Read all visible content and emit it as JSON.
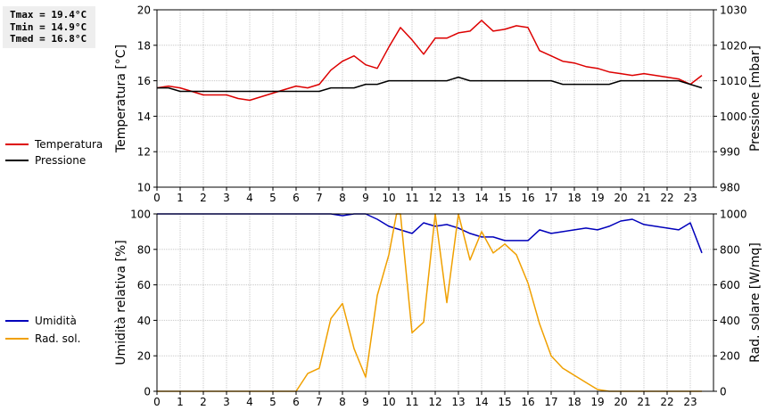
{
  "stats": [
    "Tmax = 19.4°C",
    "Tmin = 14.9°C",
    "Tmed = 16.8°C"
  ],
  "chart_data": [
    {
      "type": "line",
      "ylabel": "Temperatura [°C]",
      "y2label": "Pressione [mbar]",
      "ylim": [
        10,
        20
      ],
      "y2lim": [
        980,
        1030
      ],
      "xlim": [
        0,
        24
      ],
      "yticks": [
        10,
        12,
        14,
        16,
        18,
        20
      ],
      "y2ticks": [
        980,
        990,
        1000,
        1010,
        1020,
        1030
      ],
      "xticks": [
        0,
        1,
        2,
        3,
        4,
        5,
        6,
        7,
        8,
        9,
        10,
        11,
        12,
        13,
        14,
        15,
        16,
        17,
        18,
        19,
        20,
        21,
        22,
        23
      ],
      "grid": true,
      "legend_position": "left",
      "series": [
        {
          "name": "Temperatura",
          "axis": "left",
          "color": "#dd0000",
          "x": [
            0,
            0.5,
            1,
            1.5,
            2,
            2.5,
            3,
            3.5,
            4,
            4.5,
            5,
            5.5,
            6,
            6.5,
            7,
            7.5,
            8,
            8.5,
            9,
            9.5,
            10,
            10.5,
            11,
            11.5,
            12,
            12.5,
            13,
            13.5,
            14,
            14.5,
            15,
            15.5,
            16,
            16.5,
            17,
            17.5,
            18,
            18.5,
            19,
            19.5,
            20,
            20.5,
            21,
            21.5,
            22,
            22.5,
            23,
            23.5
          ],
          "values": [
            15.6,
            15.7,
            15.6,
            15.4,
            15.2,
            15.2,
            15.2,
            15.0,
            14.9,
            15.1,
            15.3,
            15.5,
            15.7,
            15.6,
            15.8,
            16.6,
            17.1,
            17.4,
            16.9,
            16.7,
            17.9,
            19.0,
            18.3,
            17.5,
            18.4,
            18.4,
            18.7,
            18.8,
            19.4,
            18.8,
            18.9,
            19.1,
            19.0,
            17.7,
            17.4,
            17.1,
            17.0,
            16.8,
            16.7,
            16.5,
            16.4,
            16.3,
            16.4,
            16.3,
            16.2,
            16.1,
            15.8,
            16.3
          ]
        },
        {
          "name": "Pressione",
          "axis": "right",
          "color": "#000000",
          "x": [
            0,
            0.5,
            1,
            1.5,
            2,
            2.5,
            3,
            3.5,
            4,
            4.5,
            5,
            5.5,
            6,
            6.5,
            7,
            7.5,
            8,
            8.5,
            9,
            9.5,
            10,
            10.5,
            11,
            11.5,
            12,
            12.5,
            13,
            13.5,
            14,
            14.5,
            15,
            15.5,
            16,
            16.5,
            17,
            17.5,
            18,
            18.5,
            19,
            19.5,
            20,
            20.5,
            21,
            21.5,
            22,
            22.5,
            23,
            23.5
          ],
          "values": [
            1008,
            1008,
            1007,
            1007,
            1007,
            1007,
            1007,
            1007,
            1007,
            1007,
            1007,
            1007,
            1007,
            1007,
            1007,
            1008,
            1008,
            1008,
            1009,
            1009,
            1010,
            1010,
            1010,
            1010,
            1010,
            1010,
            1011,
            1010,
            1010,
            1010,
            1010,
            1010,
            1010,
            1010,
            1010,
            1009,
            1009,
            1009,
            1009,
            1009,
            1010,
            1010,
            1010,
            1010,
            1010,
            1010,
            1009,
            1008
          ]
        }
      ]
    },
    {
      "type": "line",
      "ylabel": "Umidità relativa [%]",
      "y2label": "Rad. solare [W/mq]",
      "ylim": [
        0,
        100
      ],
      "y2lim": [
        0,
        1000
      ],
      "xlim": [
        0,
        24
      ],
      "yticks": [
        0,
        20,
        40,
        60,
        80,
        100
      ],
      "y2ticks": [
        0,
        200,
        400,
        600,
        800,
        1000
      ],
      "xticks": [
        0,
        1,
        2,
        3,
        4,
        5,
        6,
        7,
        8,
        9,
        10,
        11,
        12,
        13,
        14,
        15,
        16,
        17,
        18,
        19,
        20,
        21,
        22,
        23
      ],
      "grid": true,
      "legend_position": "left",
      "series": [
        {
          "name": "Umidità",
          "axis": "left",
          "color": "#0000bb",
          "x": [
            0,
            0.5,
            1,
            1.5,
            2,
            2.5,
            3,
            3.5,
            4,
            4.5,
            5,
            5.5,
            6,
            6.5,
            7,
            7.5,
            8,
            8.5,
            9,
            9.5,
            10,
            10.5,
            11,
            11.5,
            12,
            12.5,
            13,
            13.5,
            14,
            14.5,
            15,
            15.5,
            16,
            16.5,
            17,
            17.5,
            18,
            18.5,
            19,
            19.5,
            20,
            20.5,
            21,
            21.5,
            22,
            22.5,
            23,
            23.5
          ],
          "values": [
            100,
            100,
            100,
            100,
            100,
            100,
            100,
            100,
            100,
            100,
            100,
            100,
            100,
            100,
            100,
            100,
            99,
            100,
            100,
            97,
            93,
            91,
            89,
            95,
            93,
            94,
            92,
            89,
            87,
            87,
            85,
            85,
            85,
            91,
            89,
            90,
            91,
            92,
            91,
            93,
            96,
            97,
            94,
            93,
            92,
            91,
            95,
            78
          ]
        },
        {
          "name": "Rad. sol.",
          "axis": "right",
          "color": "#f0a000",
          "x": [
            0,
            0.5,
            1,
            1.5,
            2,
            2.5,
            3,
            3.5,
            4,
            4.5,
            5,
            5.5,
            6,
            6.5,
            7,
            7.5,
            8,
            8.5,
            9,
            9.5,
            10,
            10.33,
            10.5,
            11,
            11.5,
            12,
            12.5,
            13,
            13.5,
            14,
            14.5,
            15,
            15.5,
            16,
            16.5,
            17,
            17.5,
            18,
            18.5,
            19,
            19.5,
            20,
            20.5,
            21,
            21.5,
            22,
            22.5,
            23,
            23.5
          ],
          "values": [
            0,
            0,
            0,
            0,
            0,
            0,
            0,
            0,
            0,
            0,
            0,
            0,
            0,
            100,
            130,
            410,
            495,
            240,
            80,
            540,
            770,
            1000,
            1000,
            330,
            390,
            1000,
            500,
            1000,
            740,
            900,
            780,
            830,
            770,
            610,
            380,
            200,
            130,
            90,
            50,
            10,
            0,
            0,
            0,
            0,
            0,
            0,
            0,
            0,
            0
          ]
        }
      ]
    }
  ]
}
